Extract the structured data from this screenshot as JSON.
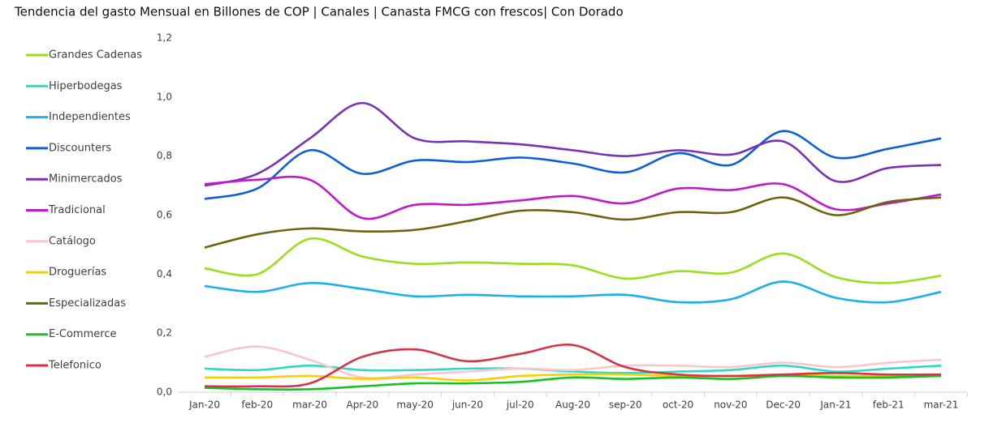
{
  "chart_data": {
    "type": "line",
    "title": "Tendencia del gasto Mensual en Billones de COP | Canales | Canasta FMCG con frescos| Con Dorado",
    "legend": "left",
    "categories": [
      "Jan-20",
      "feb-20",
      "mar-20",
      "Apr-20",
      "may-20",
      "jun-20",
      "jul-20",
      "Aug-20",
      "sep-20",
      "oct-20",
      "nov-20",
      "Dec-20",
      "Jan-21",
      "feb-21",
      "mar-21"
    ],
    "ylim": [
      0,
      1.2
    ],
    "yticks": [
      {
        "value": 0,
        "label": "0,0"
      },
      {
        "value": 0.2,
        "label": "0,2"
      },
      {
        "value": 0.4,
        "label": "0,4"
      },
      {
        "value": 0.6,
        "label": "0,6"
      },
      {
        "value": 0.8,
        "label": "0,8"
      },
      {
        "value": 1.0,
        "label": "1,0"
      },
      {
        "value": 1.2,
        "label": "1,2"
      }
    ],
    "series": [
      {
        "name": "Grandes Cadenas",
        "color": "#9ade1c",
        "values": [
          0.42,
          0.4,
          0.52,
          0.46,
          0.435,
          0.44,
          0.435,
          0.43,
          0.385,
          0.41,
          0.405,
          0.47,
          0.39,
          0.37,
          0.395
        ]
      },
      {
        "name": "Hiperbodegas",
        "color": "#2ed9c3",
        "values": [
          0.08,
          0.075,
          0.09,
          0.075,
          0.075,
          0.08,
          0.08,
          0.07,
          0.065,
          0.07,
          0.075,
          0.09,
          0.07,
          0.08,
          0.09
        ]
      },
      {
        "name": "Independientes",
        "color": "#1ab0f0",
        "values": [
          0.36,
          0.34,
          0.37,
          0.35,
          0.325,
          0.33,
          0.325,
          0.325,
          0.33,
          0.305,
          0.315,
          0.375,
          0.32,
          0.305,
          0.34
        ]
      },
      {
        "name": "Discounters",
        "color": "#0a5fe0",
        "values": [
          0.655,
          0.69,
          0.82,
          0.74,
          0.785,
          0.78,
          0.795,
          0.775,
          0.745,
          0.81,
          0.77,
          0.885,
          0.795,
          0.825,
          0.86
        ]
      },
      {
        "name": "Minimercados",
        "color": "#7a30b8",
        "values": [
          0.7,
          0.74,
          0.86,
          0.98,
          0.86,
          0.85,
          0.84,
          0.82,
          0.8,
          0.82,
          0.805,
          0.85,
          0.715,
          0.76,
          0.77
        ]
      },
      {
        "name": "Tradicional",
        "color": "#c415d0",
        "values": [
          0.705,
          0.72,
          0.72,
          0.59,
          0.635,
          0.635,
          0.65,
          0.665,
          0.64,
          0.69,
          0.685,
          0.705,
          0.62,
          0.64,
          0.67
        ]
      },
      {
        "name": "Catálogo",
        "color": "#f9c6cc",
        "values": [
          0.12,
          0.155,
          0.11,
          0.05,
          0.06,
          0.07,
          0.08,
          0.075,
          0.09,
          0.09,
          0.085,
          0.1,
          0.085,
          0.1,
          0.11
        ]
      },
      {
        "name": "Droguerías",
        "color": "#f4d100",
        "values": [
          0.05,
          0.05,
          0.055,
          0.045,
          0.05,
          0.04,
          0.055,
          0.06,
          0.06,
          0.055,
          0.055,
          0.06,
          0.055,
          0.055,
          0.06
        ]
      },
      {
        "name": "Especializadas",
        "color": "#6e6410",
        "values": [
          0.49,
          0.535,
          0.555,
          0.545,
          0.55,
          0.58,
          0.615,
          0.61,
          0.585,
          0.61,
          0.61,
          0.66,
          0.6,
          0.645,
          0.66
        ]
      },
      {
        "name": "E-Commerce",
        "color": "#14c41e",
        "values": [
          0.015,
          0.01,
          0.01,
          0.02,
          0.03,
          0.03,
          0.035,
          0.05,
          0.045,
          0.05,
          0.045,
          0.055,
          0.05,
          0.05,
          0.055
        ]
      },
      {
        "name": "Telefonico",
        "color": "#d8324a",
        "values": [
          0.02,
          0.02,
          0.03,
          0.12,
          0.145,
          0.105,
          0.13,
          0.16,
          0.085,
          0.06,
          0.055,
          0.06,
          0.065,
          0.06,
          0.06
        ]
      }
    ]
  }
}
